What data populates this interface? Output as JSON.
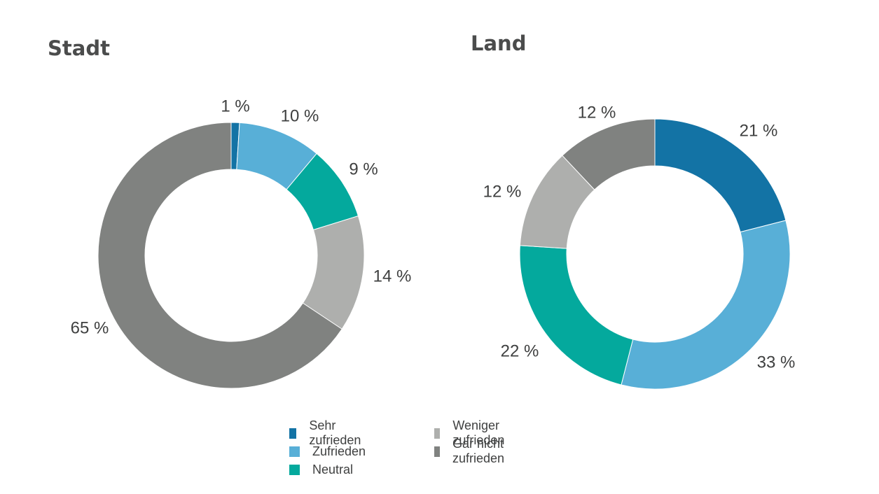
{
  "chart_data": [
    {
      "type": "pie",
      "title": "Stadt",
      "categories": [
        "Sehr zufrieden",
        "Zufrieden",
        "Neutral",
        "Weniger zufrieden",
        "Gar nicht zufrieden"
      ],
      "values": [
        1,
        10,
        9,
        14,
        65
      ],
      "labels": [
        "1 %",
        "10 %",
        "9 %",
        "14 %",
        "65 %"
      ]
    },
    {
      "type": "pie",
      "title": "Land",
      "categories": [
        "Sehr zufrieden",
        "Zufrieden",
        "Neutral",
        "Weniger zufrieden",
        "Gar nicht zufrieden"
      ],
      "values": [
        21,
        33,
        22,
        12,
        12
      ],
      "labels": [
        "21 %",
        "33 %",
        "22 %",
        "12 %",
        "12 %"
      ]
    }
  ],
  "legend": [
    {
      "label": "Sehr zufrieden",
      "color": "#1373a5"
    },
    {
      "label": "Zufrieden",
      "color": "#58afd7"
    },
    {
      "label": "Neutral",
      "color": "#04a99d"
    },
    {
      "label": "Weniger zufrieden",
      "color": "#aeafad"
    },
    {
      "label": "Gar nicht zufrieden",
      "color": "#808280"
    }
  ],
  "colors": [
    "#1373a5",
    "#58afd7",
    "#04a99d",
    "#aeafad",
    "#808280"
  ]
}
